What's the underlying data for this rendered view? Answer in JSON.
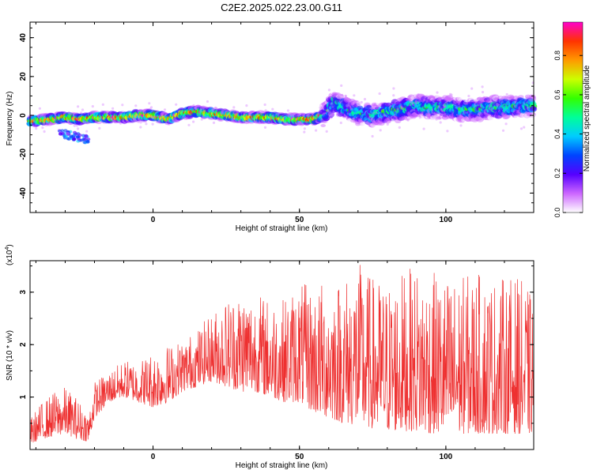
{
  "title": "C2E2.2025.022.23.00.G11",
  "colors": {
    "snr_line": "#ee3030",
    "spectrogram_colormap": [
      "#ff00cc",
      "#ff3300",
      "#ff9900",
      "#ccff00",
      "#33ff00",
      "#00ff99",
      "#00ccff",
      "#0044ff",
      "#5500ff",
      "#cc66ff",
      "#ffffff"
    ]
  },
  "chart_data": [
    {
      "type": "heatmap",
      "title": "C2E2.2025.022.23.00.G11",
      "xlabel": "Height of straight line (km)",
      "ylabel": "Frequency (Hz)",
      "xlim": [
        -42,
        130
      ],
      "ylim": [
        -50,
        48
      ],
      "xticks": [
        0,
        50,
        100
      ],
      "yticks": [
        40,
        20,
        0,
        -20,
        -40
      ],
      "colorbar": {
        "label": "Normalized spectral amplitude",
        "range": [
          0,
          0.97
        ],
        "ticks": [
          0.0,
          0.2,
          0.4,
          0.6,
          0.8
        ]
      },
      "ridge": {
        "x": [
          -42,
          -35,
          -30,
          -25,
          -20,
          -15,
          -10,
          -5,
          0,
          3,
          5,
          10,
          15,
          20,
          25,
          30,
          35,
          40,
          45,
          50,
          55,
          58,
          60,
          62,
          65,
          70,
          75,
          80,
          85,
          90,
          95,
          100,
          105,
          110,
          115,
          120,
          125,
          130
        ],
        "y": [
          -3,
          -2,
          -1,
          -2,
          -1,
          -1,
          -1,
          0,
          0,
          -1,
          -2,
          1,
          2,
          1,
          0,
          -1,
          -1,
          -1,
          -2,
          -2,
          -2,
          0,
          3,
          7,
          4,
          1,
          0,
          2,
          3,
          5,
          4,
          4,
          3,
          3,
          4,
          4,
          5,
          5
        ]
      }
    },
    {
      "type": "line",
      "xlabel": "Height of straight line (km)",
      "ylabel": "SNR (10 * v/v)",
      "y_multiplier": "(x10",
      "y_multiplier_exp": "4",
      "y_multiplier_close": ")",
      "xlim": [
        -42,
        130
      ],
      "ylim": [
        0,
        3.6
      ],
      "xticks": [
        0,
        50,
        100
      ],
      "yticks": [
        1,
        2,
        3
      ],
      "envelope": {
        "x": [
          -42,
          -38,
          -34,
          -30,
          -26,
          -22,
          -20,
          -15,
          -10,
          -5,
          0,
          5,
          10,
          15,
          20,
          25,
          30,
          35,
          40,
          45,
          50,
          55,
          60,
          65,
          70,
          75,
          80,
          85,
          90,
          95,
          100,
          105,
          110,
          115,
          120,
          125,
          130
        ],
        "baseline": [
          0.1,
          0.2,
          0.25,
          0.3,
          0.2,
          0.15,
          0.6,
          0.9,
          1.0,
          0.9,
          0.8,
          0.9,
          1.1,
          1.2,
          1.3,
          1.2,
          1.1,
          1.1,
          1.0,
          0.9,
          0.9,
          0.7,
          0.6,
          0.5,
          0.45,
          0.4,
          0.35,
          0.35,
          0.35,
          0.3,
          0.3,
          0.3,
          0.3,
          0.3,
          0.3,
          0.3,
          0.3
        ],
        "peak": [
          0.6,
          0.9,
          1.1,
          1.2,
          1.0,
          0.7,
          1.3,
          1.5,
          1.7,
          1.7,
          1.9,
          2.0,
          2.1,
          2.3,
          2.6,
          2.9,
          3.1,
          3.0,
          2.9,
          2.9,
          3.2,
          3.1,
          3.3,
          3.3,
          3.6,
          3.3,
          3.2,
          3.4,
          3.5,
          3.4,
          3.3,
          3.3,
          3.4,
          3.3,
          3.3,
          3.3,
          2.9
        ]
      }
    }
  ]
}
